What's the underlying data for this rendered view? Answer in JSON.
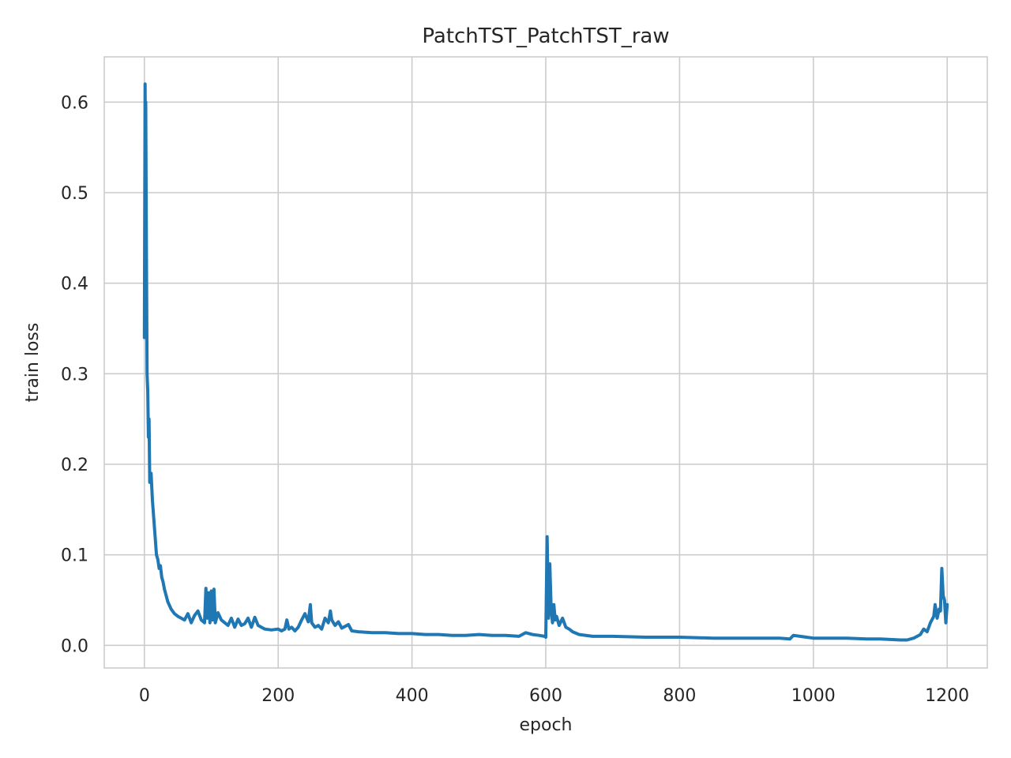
{
  "chart_data": {
    "type": "line",
    "title": "PatchTST_PatchTST_raw",
    "xlabel": "epoch",
    "ylabel": "train loss",
    "xlim": [
      -60,
      1260
    ],
    "ylim": [
      -0.025,
      0.65
    ],
    "xticks": [
      0,
      200,
      400,
      600,
      800,
      1000,
      1200
    ],
    "yticks": [
      0.0,
      0.1,
      0.2,
      0.3,
      0.4,
      0.5,
      0.6
    ],
    "xtick_labels": [
      "0",
      "200",
      "400",
      "600",
      "800",
      "1000",
      "1200"
    ],
    "ytick_labels": [
      "0.0",
      "0.1",
      "0.2",
      "0.3",
      "0.4",
      "0.5",
      "0.6"
    ],
    "grid": true,
    "legend": "none",
    "series": [
      {
        "color": "#1f77b4",
        "x": [
          0,
          1,
          1.5,
          2,
          3,
          4,
          5,
          6,
          7,
          8,
          10,
          12,
          14,
          16,
          18,
          20,
          22,
          24,
          26,
          28,
          30,
          35,
          40,
          45,
          50,
          55,
          60,
          65,
          70,
          75,
          80,
          85,
          90,
          92,
          94,
          96,
          98,
          100,
          102,
          104,
          106,
          110,
          115,
          120,
          125,
          130,
          135,
          140,
          145,
          150,
          155,
          160,
          165,
          170,
          180,
          190,
          200,
          205,
          210,
          213,
          216,
          220,
          225,
          230,
          235,
          240,
          245,
          248,
          250,
          255,
          260,
          265,
          270,
          275,
          278,
          280,
          285,
          290,
          295,
          300,
          305,
          310,
          320,
          340,
          360,
          380,
          400,
          420,
          440,
          460,
          480,
          500,
          520,
          540,
          560,
          570,
          580,
          590,
          598,
          600,
          602,
          604,
          606,
          608,
          610,
          612,
          614,
          616,
          620,
          625,
          630,
          635,
          640,
          650,
          670,
          700,
          750,
          800,
          850,
          900,
          950,
          965,
          970,
          1000,
          1030,
          1050,
          1080,
          1100,
          1130,
          1140,
          1150,
          1160,
          1165,
          1170,
          1175,
          1180,
          1182,
          1185,
          1188,
          1190,
          1192,
          1194,
          1196,
          1198,
          1200
        ],
        "y": [
          0.34,
          0.62,
          0.55,
          0.6,
          0.43,
          0.3,
          0.28,
          0.23,
          0.25,
          0.18,
          0.19,
          0.16,
          0.14,
          0.12,
          0.1,
          0.095,
          0.085,
          0.088,
          0.075,
          0.07,
          0.062,
          0.048,
          0.04,
          0.035,
          0.032,
          0.03,
          0.028,
          0.035,
          0.025,
          0.033,
          0.038,
          0.028,
          0.025,
          0.063,
          0.03,
          0.058,
          0.025,
          0.06,
          0.028,
          0.062,
          0.025,
          0.036,
          0.028,
          0.025,
          0.022,
          0.03,
          0.02,
          0.029,
          0.022,
          0.024,
          0.03,
          0.02,
          0.031,
          0.022,
          0.018,
          0.017,
          0.018,
          0.016,
          0.018,
          0.028,
          0.018,
          0.02,
          0.016,
          0.02,
          0.028,
          0.035,
          0.026,
          0.045,
          0.025,
          0.02,
          0.022,
          0.018,
          0.03,
          0.025,
          0.038,
          0.028,
          0.022,
          0.026,
          0.019,
          0.021,
          0.023,
          0.016,
          0.015,
          0.014,
          0.014,
          0.013,
          0.013,
          0.012,
          0.012,
          0.011,
          0.011,
          0.012,
          0.011,
          0.011,
          0.01,
          0.014,
          0.012,
          0.011,
          0.01,
          0.009,
          0.12,
          0.03,
          0.09,
          0.04,
          0.025,
          0.045,
          0.028,
          0.032,
          0.022,
          0.03,
          0.02,
          0.018,
          0.015,
          0.012,
          0.01,
          0.01,
          0.009,
          0.009,
          0.008,
          0.008,
          0.008,
          0.007,
          0.011,
          0.008,
          0.008,
          0.008,
          0.007,
          0.007,
          0.006,
          0.006,
          0.008,
          0.012,
          0.018,
          0.015,
          0.025,
          0.032,
          0.045,
          0.03,
          0.04,
          0.038,
          0.085,
          0.055,
          0.05,
          0.025,
          0.045
        ]
      }
    ]
  }
}
